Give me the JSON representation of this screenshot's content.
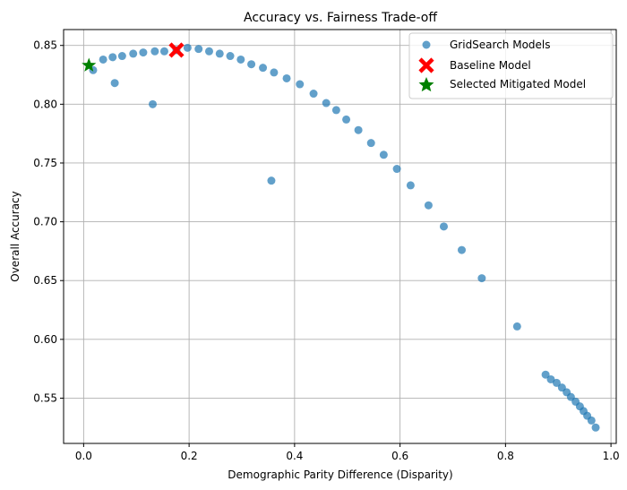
{
  "chart_data": {
    "type": "scatter",
    "title": "Accuracy vs. Fairness Trade-off",
    "xlabel": "Demographic Parity Difference (Disparity)",
    "ylabel": "Overall Accuracy",
    "xlim": [
      -0.038,
      1.01
    ],
    "ylim": [
      0.5115,
      0.8635
    ],
    "x_ticks": [
      "0.0",
      "0.2",
      "0.4",
      "0.6",
      "0.8",
      "1.0"
    ],
    "x_tick_values": [
      0.0,
      0.2,
      0.4,
      0.6,
      0.8,
      1.0
    ],
    "y_ticks": [
      "0.55",
      "0.60",
      "0.65",
      "0.70",
      "0.75",
      "0.80",
      "0.85"
    ],
    "y_tick_values": [
      0.55,
      0.6,
      0.65,
      0.7,
      0.75,
      0.8,
      0.85
    ],
    "grid": true,
    "legend_position": "top-right",
    "series": [
      {
        "name": "GridSearch Models",
        "marker": "circle",
        "color": "#1f77b4",
        "points": [
          [
            0.018,
            0.829
          ],
          [
            0.037,
            0.838
          ],
          [
            0.055,
            0.84
          ],
          [
            0.073,
            0.841
          ],
          [
            0.094,
            0.843
          ],
          [
            0.113,
            0.844
          ],
          [
            0.135,
            0.845
          ],
          [
            0.153,
            0.845
          ],
          [
            0.176,
            0.846
          ],
          [
            0.197,
            0.848
          ],
          [
            0.218,
            0.847
          ],
          [
            0.238,
            0.845
          ],
          [
            0.258,
            0.843
          ],
          [
            0.278,
            0.841
          ],
          [
            0.298,
            0.838
          ],
          [
            0.318,
            0.834
          ],
          [
            0.34,
            0.831
          ],
          [
            0.361,
            0.827
          ],
          [
            0.385,
            0.822
          ],
          [
            0.41,
            0.817
          ],
          [
            0.436,
            0.809
          ],
          [
            0.46,
            0.801
          ],
          [
            0.479,
            0.795
          ],
          [
            0.498,
            0.787
          ],
          [
            0.521,
            0.778
          ],
          [
            0.545,
            0.767
          ],
          [
            0.569,
            0.757
          ],
          [
            0.594,
            0.745
          ],
          [
            0.62,
            0.731
          ],
          [
            0.654,
            0.714
          ],
          [
            0.683,
            0.696
          ],
          [
            0.717,
            0.676
          ],
          [
            0.755,
            0.652
          ],
          [
            0.822,
            0.611
          ],
          [
            0.059,
            0.818
          ],
          [
            0.131,
            0.8
          ],
          [
            0.356,
            0.735
          ],
          [
            0.876,
            0.57
          ],
          [
            0.886,
            0.566
          ],
          [
            0.897,
            0.563
          ],
          [
            0.907,
            0.559
          ],
          [
            0.916,
            0.555
          ],
          [
            0.924,
            0.551
          ],
          [
            0.933,
            0.547
          ],
          [
            0.941,
            0.543
          ],
          [
            0.948,
            0.539
          ],
          [
            0.955,
            0.535
          ],
          [
            0.963,
            0.531
          ],
          [
            0.971,
            0.525
          ]
        ]
      },
      {
        "name": "Baseline Model",
        "marker": "x",
        "color": "#ff0000",
        "points": [
          [
            0.176,
            0.846
          ]
        ]
      },
      {
        "name": "Selected Mitigated Model",
        "marker": "star",
        "color": "#008000",
        "points": [
          [
            0.01,
            0.833
          ]
        ]
      }
    ]
  }
}
